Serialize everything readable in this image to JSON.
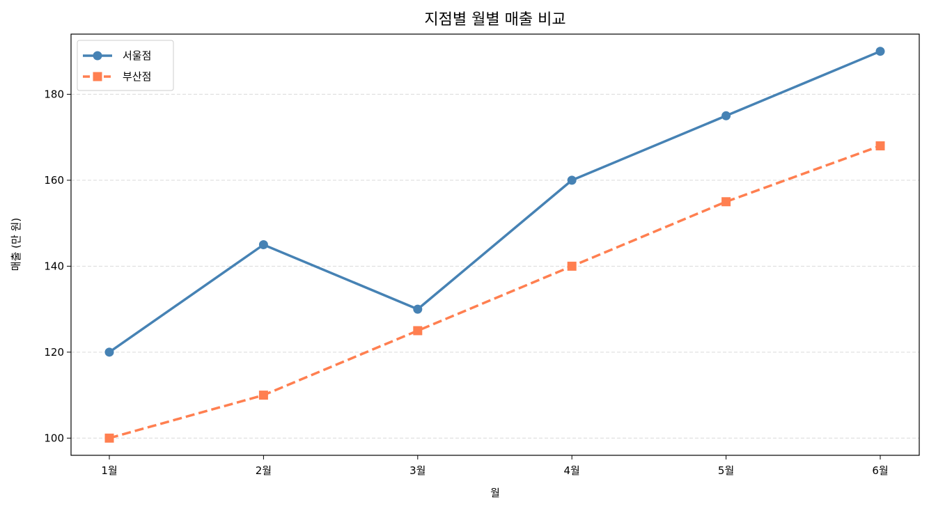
{
  "chart_data": {
    "type": "line",
    "title": "지점별 월별 매출 비교",
    "xlabel": "월",
    "ylabel": "매출 (만 원)",
    "categories": [
      "1월",
      "2월",
      "3월",
      "4월",
      "5월",
      "6월"
    ],
    "ylim": [
      96,
      194
    ],
    "yticks": [
      100,
      120,
      140,
      160,
      180
    ],
    "grid": "y-dashed",
    "legend_position": "top-left",
    "series": [
      {
        "name": "서울점",
        "values": [
          120,
          145,
          130,
          160,
          175,
          190
        ],
        "color": "#4682b4",
        "line_style": "solid",
        "marker": "circle"
      },
      {
        "name": "부산점",
        "values": [
          100,
          110,
          125,
          140,
          155,
          168
        ],
        "color": "#ff7f50",
        "line_style": "dashed",
        "marker": "square"
      }
    ]
  }
}
